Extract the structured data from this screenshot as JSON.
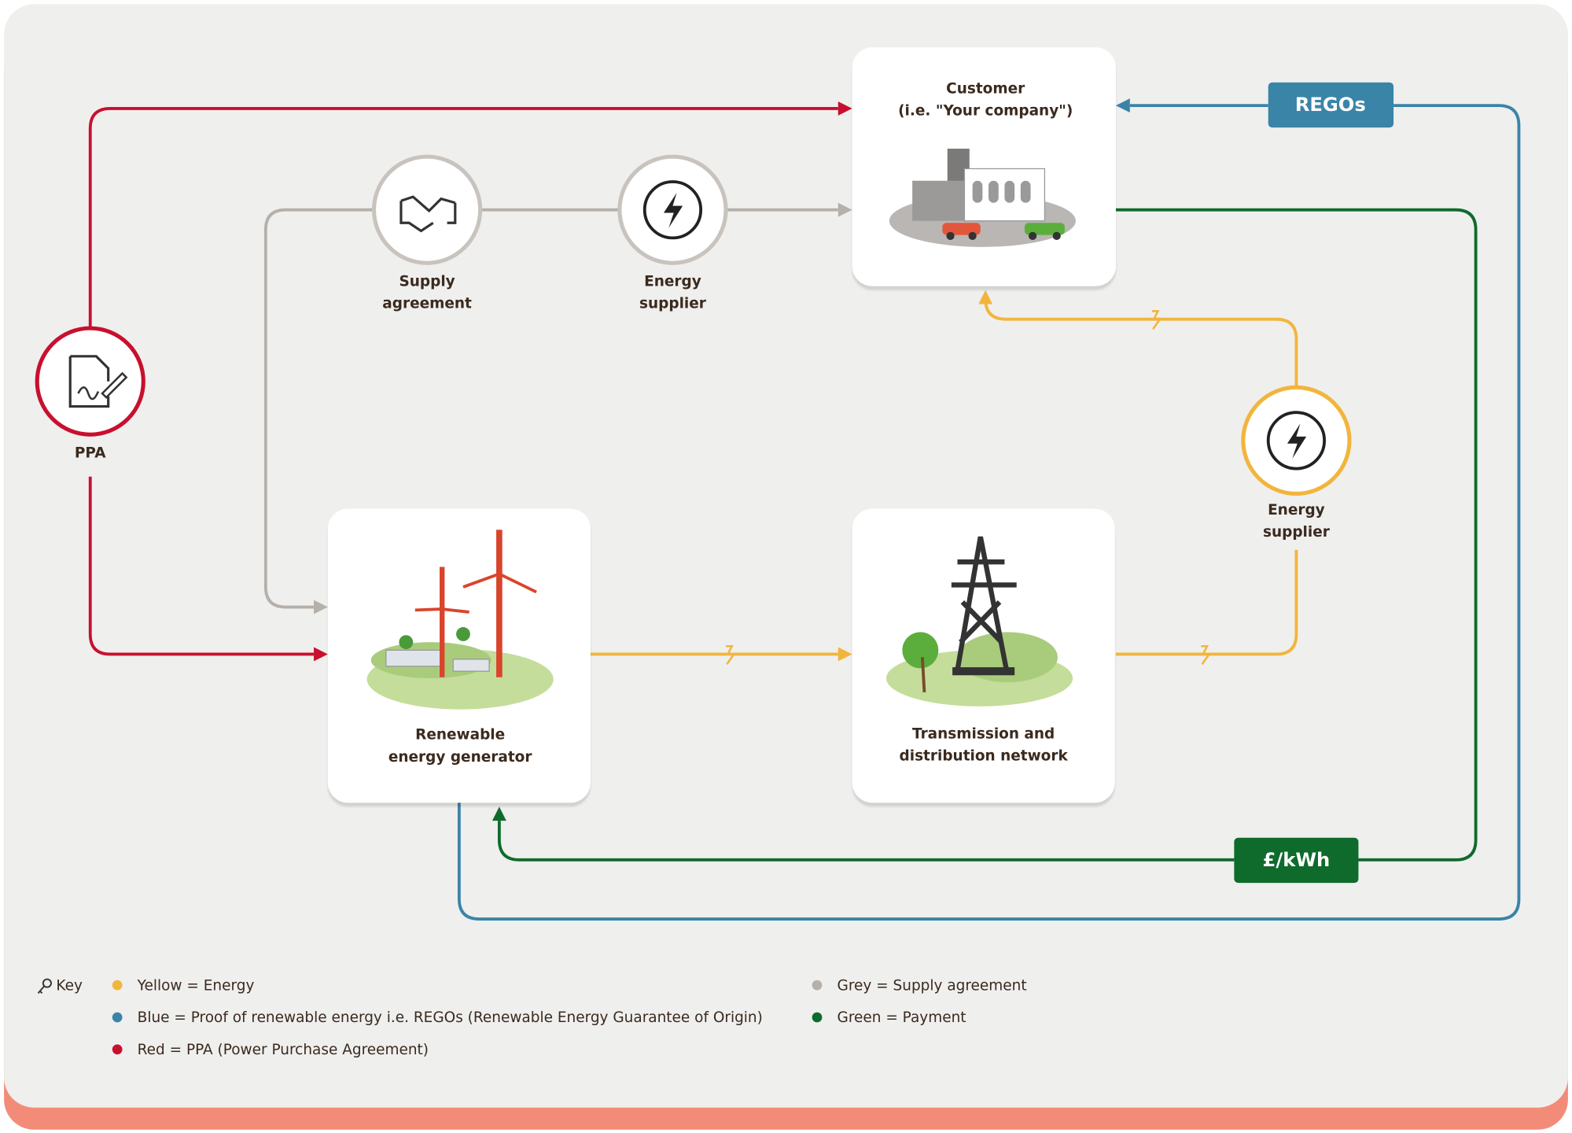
{
  "nodes": [
    {
      "lines": [
        "Customer",
        "(i.e. \"Your company\")"
      ]
    },
    {
      "lines": [
        "Renewable",
        "energy generator"
      ]
    },
    {
      "lines": [
        "Transmission and",
        "distribution network"
      ]
    },
    {
      "lines": [
        "Supply",
        "agreement"
      ]
    },
    {
      "lines": [
        "Energy",
        "supplier"
      ]
    },
    {
      "lines": [
        "Energy",
        "supplier"
      ]
    },
    {
      "lines": [
        "PPA"
      ]
    }
  ],
  "badges": [
    "REGOs",
    "£/kWh"
  ],
  "key": {
    "title": "Key",
    "items": [
      {
        "text": "Yellow = Energy",
        "color": "#f2b53c"
      },
      {
        "text": "Blue = Proof of renewable energy i.e. REGOs (Renewable Energy Guarantee of Origin)",
        "color": "#3a84a8"
      },
      {
        "text": "Red = PPA (Power Purchase Agreement)",
        "color": "#c8102e"
      },
      {
        "text": "Grey = Supply agreement",
        "color": "#b5b0aa"
      },
      {
        "text": "Green = Payment",
        "color": "#0e6b2c"
      }
    ]
  }
}
